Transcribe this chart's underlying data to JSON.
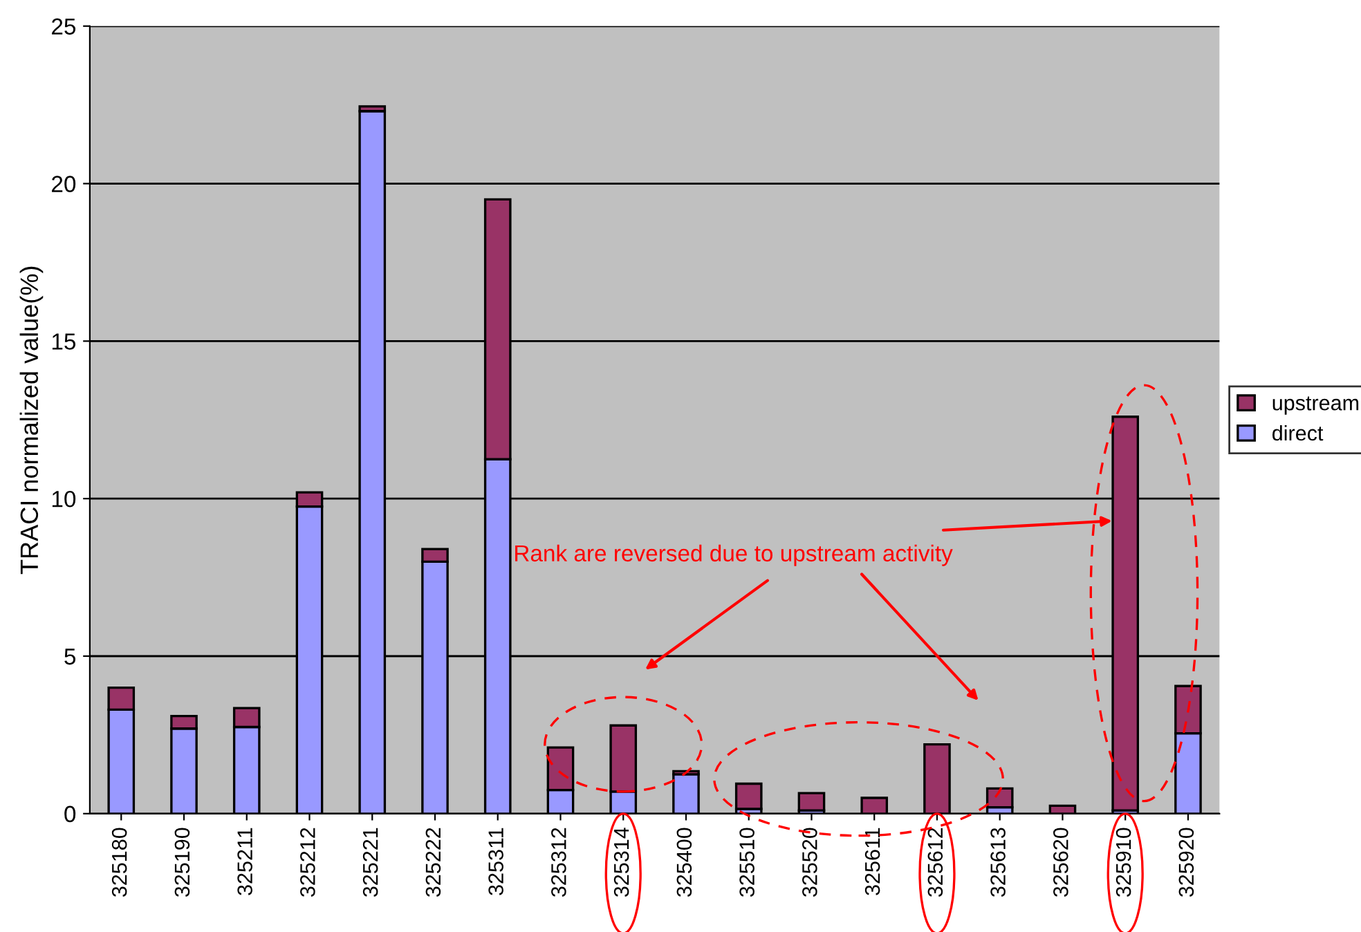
{
  "chart_data": {
    "type": "bar",
    "stacked": true,
    "ylabel": "TRACI normalized value(%)",
    "categories": [
      "325180",
      "325190",
      "325211",
      "325212",
      "325221",
      "325222",
      "325311",
      "325312",
      "325314",
      "325400",
      "325510",
      "325520",
      "325611",
      "325612",
      "325613",
      "325620",
      "325910",
      "325920"
    ],
    "series": [
      {
        "name": "direct",
        "color": "#9999ff",
        "values": [
          3.3,
          2.7,
          2.75,
          9.75,
          22.3,
          8.0,
          11.25,
          0.75,
          0.7,
          1.25,
          0.15,
          0.1,
          0.0,
          0.0,
          0.2,
          0.0,
          0.1,
          2.55
        ]
      },
      {
        "name": "upstream",
        "color": "#993366",
        "values": [
          0.7,
          0.4,
          0.6,
          0.45,
          0.15,
          0.4,
          8.25,
          1.35,
          2.1,
          0.1,
          0.8,
          0.55,
          0.5,
          2.2,
          0.6,
          0.25,
          12.5,
          1.5
        ]
      }
    ],
    "ylim": [
      0,
      25
    ],
    "yticks": [
      0,
      5,
      10,
      15,
      20,
      25
    ],
    "grid": "y",
    "legend": "right",
    "annotations": [
      {
        "text": "Rank are reversed due to upstream activity"
      }
    ]
  }
}
